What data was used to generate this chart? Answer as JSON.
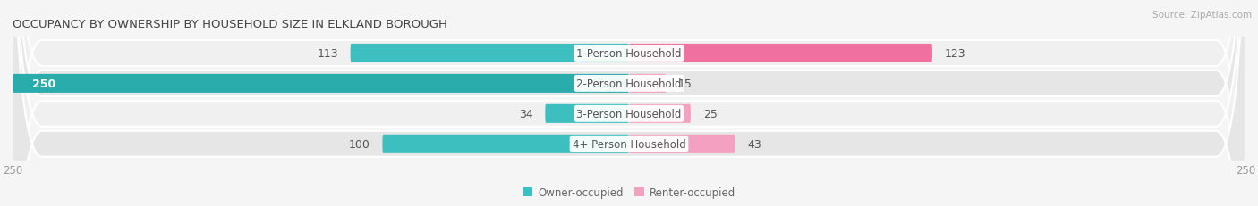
{
  "title": "OCCUPANCY BY OWNERSHIP BY HOUSEHOLD SIZE IN ELKLAND BOROUGH",
  "source": "Source: ZipAtlas.com",
  "categories": [
    "1-Person Household",
    "2-Person Household",
    "3-Person Household",
    "4+ Person Household"
  ],
  "owner_values": [
    113,
    250,
    34,
    100
  ],
  "renter_values": [
    123,
    15,
    25,
    43
  ],
  "max_scale": 250,
  "owner_color": "#3DBFBF",
  "owner_color_dark": "#2AACAC",
  "renter_color": "#F070A0",
  "renter_color_light": "#F4A0C0",
  "row_bg_light": "#F0F0F0",
  "row_bg_dark": "#E6E6E6",
  "fig_bg": "#F5F5F5",
  "label_color": "#555555",
  "axis_tick_color": "#999999",
  "legend_owner": "Owner-occupied",
  "legend_renter": "Renter-occupied"
}
